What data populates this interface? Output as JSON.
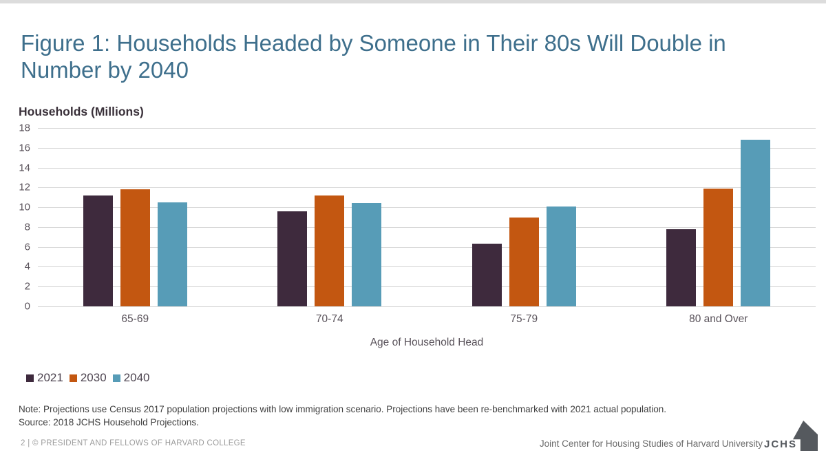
{
  "slide": {
    "title": "Figure 1: Households Headed by Someone in Their 80s Will Double in Number by 2040",
    "note": "Note: Projections use Census 2017 population projections with low immigration scenario. Projections have been re-benchmarked with 2021 actual population.",
    "source": "Source: 2018 JCHS Household Projections.",
    "footer_left": "2 | © PRESIDENT AND FELLOWS OF HARVARD COLLEGE",
    "footer_right": "Joint Center for Housing Studies of Harvard University",
    "logo_text": "JCHS"
  },
  "chart_data": {
    "type": "bar",
    "title": "Figure 1: Households Headed by Someone in Their 80s Will Double in Number by 2040",
    "ylabel": "Households (Millions)",
    "xlabel": "Age of Household Head",
    "ylim": [
      0,
      18
    ],
    "ytick_step": 2,
    "grid": true,
    "legend_position": "bottom-left",
    "categories": [
      "65-69",
      "70-74",
      "75-79",
      "80 and Over"
    ],
    "series": [
      {
        "name": "2021",
        "color": "#3E2A3D",
        "values": [
          11.2,
          9.6,
          6.3,
          7.8
        ]
      },
      {
        "name": "2030",
        "color": "#C35711",
        "values": [
          11.8,
          11.2,
          9.0,
          11.9
        ]
      },
      {
        "name": "2040",
        "color": "#579CB7",
        "values": [
          10.5,
          10.4,
          10.1,
          16.8
        ]
      }
    ]
  },
  "colors": {
    "title_text": "#3E6F8C",
    "axis_text": "#59525A",
    "gridline": "#D9D9D9",
    "note_text": "#3F3F3F",
    "footer_left_text": "#9B9B9B",
    "footer_right_text": "#6A6A6A",
    "logo": "#55595E"
  }
}
